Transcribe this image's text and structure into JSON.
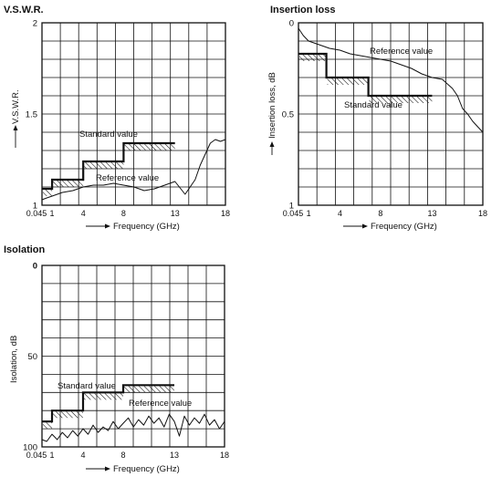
{
  "figure": {
    "charts": [
      {
        "id": "vswr",
        "title": "V.S.W.R.",
        "ylabel": "V.S.W.R.",
        "xlabel": "Frequency (GHz)"
      },
      {
        "id": "insertion",
        "title": "Insertion loss",
        "ylabel": "Insertion loss, dB",
        "xlabel": "Frequency (GHz)"
      },
      {
        "id": "isolation",
        "title": "Isolation",
        "ylabel": "Isolation, dB",
        "xlabel": "Frequency (GHz)"
      }
    ]
  },
  "chart_data": [
    {
      "type": "line",
      "title": "V.S.W.R.",
      "xlabel": "Frequency (GHz)",
      "ylabel": "V.S.W.R.",
      "x_tick_labels": [
        "0.045",
        "1",
        "4",
        "8",
        "13",
        "18"
      ],
      "y_tick_labels": [
        "2",
        "1.5",
        "1"
      ],
      "y_ticks": [
        2,
        1.5,
        1
      ],
      "ylim": [
        1,
        2
      ],
      "grid": true,
      "annotations": [
        "Standard value",
        "Reference value"
      ],
      "series": [
        {
          "name": "Standard value",
          "style": "step",
          "x": [
            0.045,
            1,
            1,
            4,
            4,
            8,
            8,
            13
          ],
          "y": [
            1.09,
            1.09,
            1.14,
            1.14,
            1.24,
            1.24,
            1.34,
            1.34
          ]
        },
        {
          "name": "Reference value",
          "x": [
            0.045,
            0.5,
            1,
            2,
            3,
            4,
            5,
            6,
            7,
            8,
            9,
            10,
            11,
            12,
            13,
            14,
            15,
            15.5,
            16,
            16.5,
            17,
            17.5,
            18
          ],
          "y": [
            1.03,
            1.04,
            1.05,
            1.07,
            1.08,
            1.1,
            1.11,
            1.11,
            1.12,
            1.11,
            1.1,
            1.08,
            1.09,
            1.11,
            1.13,
            1.06,
            1.14,
            1.22,
            1.28,
            1.34,
            1.36,
            1.35,
            1.36
          ]
        }
      ]
    },
    {
      "type": "line",
      "title": "Insertion loss",
      "xlabel": "Frequency (GHz)",
      "ylabel": "Insertion loss, dB",
      "x_tick_labels": [
        "0.045",
        "1",
        "4",
        "8",
        "13",
        "18"
      ],
      "y_tick_labels": [
        "0",
        "0.5",
        "1"
      ],
      "y_ticks": [
        0,
        0.5,
        1
      ],
      "ylim": [
        0,
        1
      ],
      "grid": true,
      "annotations": [
        "Reference value",
        "Standard value"
      ],
      "series": [
        {
          "name": "Standard value",
          "style": "step",
          "x": [
            0.045,
            2.7,
            2.7,
            6.8,
            6.8,
            13
          ],
          "y": [
            0.17,
            0.17,
            0.3,
            0.3,
            0.4,
            0.4
          ]
        },
        {
          "name": "Reference value",
          "x": [
            0.045,
            0.5,
            1,
            2,
            3,
            4,
            5,
            6,
            7,
            8,
            9,
            10,
            11,
            12,
            13,
            14,
            15,
            15.5,
            16,
            16.5,
            17,
            17.5,
            18
          ],
          "y": [
            0.03,
            0.07,
            0.1,
            0.12,
            0.14,
            0.15,
            0.17,
            0.18,
            0.19,
            0.2,
            0.21,
            0.23,
            0.25,
            0.28,
            0.3,
            0.31,
            0.36,
            0.4,
            0.47,
            0.5,
            0.54,
            0.57,
            0.6
          ]
        }
      ]
    },
    {
      "type": "line",
      "title": "Isolation",
      "xlabel": "Frequency (GHz)",
      "ylabel": "Isolation, dB",
      "x_tick_labels": [
        "0.045",
        "1",
        "4",
        "8",
        "13",
        "18"
      ],
      "y_tick_labels": [
        "0",
        "50",
        "100"
      ],
      "y_ticks": [
        0,
        50,
        100
      ],
      "ylim": [
        0,
        100
      ],
      "grid": true,
      "annotations": [
        "Standard value",
        "Reference value"
      ],
      "series": [
        {
          "name": "Standard value",
          "style": "step",
          "x": [
            0.045,
            1,
            1,
            4,
            4,
            8,
            8,
            13
          ],
          "y": [
            86,
            86,
            80,
            80,
            70,
            70,
            66,
            66
          ]
        },
        {
          "name": "Reference value",
          "x": [
            0.045,
            0.5,
            1,
            1.5,
            2,
            2.5,
            3,
            3.5,
            4,
            4.5,
            5,
            5.5,
            6,
            6.5,
            7,
            7.5,
            8,
            8.5,
            9,
            9.5,
            10,
            10.5,
            11,
            11.5,
            12,
            12.5,
            13,
            13.5,
            14,
            14.5,
            15,
            15.5,
            16,
            16.5,
            17,
            17.5,
            18
          ],
          "y": [
            96,
            97,
            93,
            96,
            92,
            95,
            91,
            94,
            90,
            93,
            88,
            92,
            89,
            91,
            86,
            90,
            87,
            84,
            89,
            85,
            88,
            83,
            87,
            84,
            89,
            82,
            86,
            94,
            83,
            88,
            84,
            87,
            82,
            88,
            85,
            90,
            86
          ]
        }
      ]
    }
  ]
}
